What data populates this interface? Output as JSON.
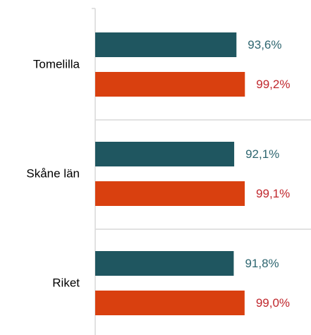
{
  "chart_data": {
    "type": "hbar",
    "categories": [
      "Tomelilla",
      "Skåne län",
      "Riket"
    ],
    "series": [
      {
        "color": "#1f5660",
        "label_color": "#2e6670",
        "values": [
          93.6,
          92.1,
          91.8
        ],
        "value_labels": [
          "93,6%",
          "92,1%",
          "91,8%"
        ]
      },
      {
        "color": "#d9400f",
        "label_color": "#c0272d",
        "values": [
          99.2,
          99.1,
          99.0
        ],
        "value_labels": [
          "99,2%",
          "99,1%",
          "99,0%"
        ]
      }
    ],
    "xlim": [
      0,
      143
    ]
  }
}
